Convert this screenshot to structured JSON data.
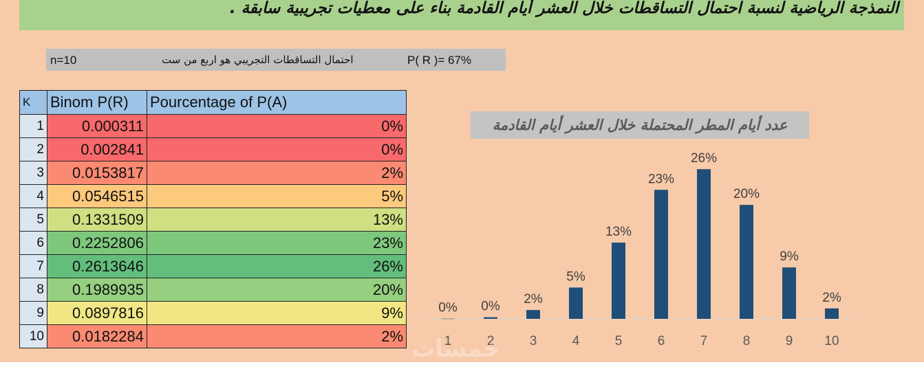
{
  "title": "النمذجة الرياضية لنسبة احتمال التساقطات خلال العشر أيام القادمة بناء على معطيات تجريبية سابقة .",
  "info": {
    "n_label": "n=10",
    "description": "احتمال التساقطات التجريبي هو اربع من ست",
    "probability": "P( R )= 67%"
  },
  "table": {
    "headers": [
      "K",
      "Binom P(R)",
      "Pourcentage of P(A)"
    ],
    "rows": [
      {
        "k": "1",
        "binom": "0.000311",
        "pct": "0%",
        "color": "#f8696b"
      },
      {
        "k": "2",
        "binom": "0.002841",
        "pct": "0%",
        "color": "#f8696b"
      },
      {
        "k": "3",
        "binom": "0.0153817",
        "pct": "2%",
        "color": "#fa8a72"
      },
      {
        "k": "4",
        "binom": "0.0546515",
        "pct": "5%",
        "color": "#fdc97d"
      },
      {
        "k": "5",
        "binom": "0.1331509",
        "pct": "13%",
        "color": "#cfdf82"
      },
      {
        "k": "6",
        "binom": "0.2252806",
        "pct": "23%",
        "color": "#7ec87d"
      },
      {
        "k": "7",
        "binom": "0.2613646",
        "pct": "26%",
        "color": "#63be7b"
      },
      {
        "k": "8",
        "binom": "0.1989935",
        "pct": "20%",
        "color": "#95cf7f"
      },
      {
        "k": "9",
        "binom": "0.0897816",
        "pct": "9%",
        "color": "#f0e784"
      },
      {
        "k": "10",
        "binom": "0.0182284",
        "pct": "2%",
        "color": "#fa8b72"
      }
    ]
  },
  "chart_data": {
    "type": "bar",
    "title": "عدد أيام المطر المحتملة خلال العشر أيام القادمة",
    "categories": [
      "1",
      "2",
      "3",
      "4",
      "5",
      "6",
      "7",
      "8",
      "9",
      "10"
    ],
    "values": [
      0.000311,
      0.002841,
      0.0153817,
      0.0546515,
      0.1331509,
      0.2252806,
      0.2613646,
      0.1989935,
      0.0897816,
      0.0182284
    ],
    "data_labels": [
      "0%",
      "0%",
      "2%",
      "5%",
      "13%",
      "23%",
      "26%",
      "20%",
      "9%",
      "2%"
    ],
    "xlabel": "",
    "ylabel": "",
    "ylim": [
      0,
      0.3
    ],
    "bar_color": "#1f4e79",
    "grid": false
  },
  "watermark": "خمسات"
}
